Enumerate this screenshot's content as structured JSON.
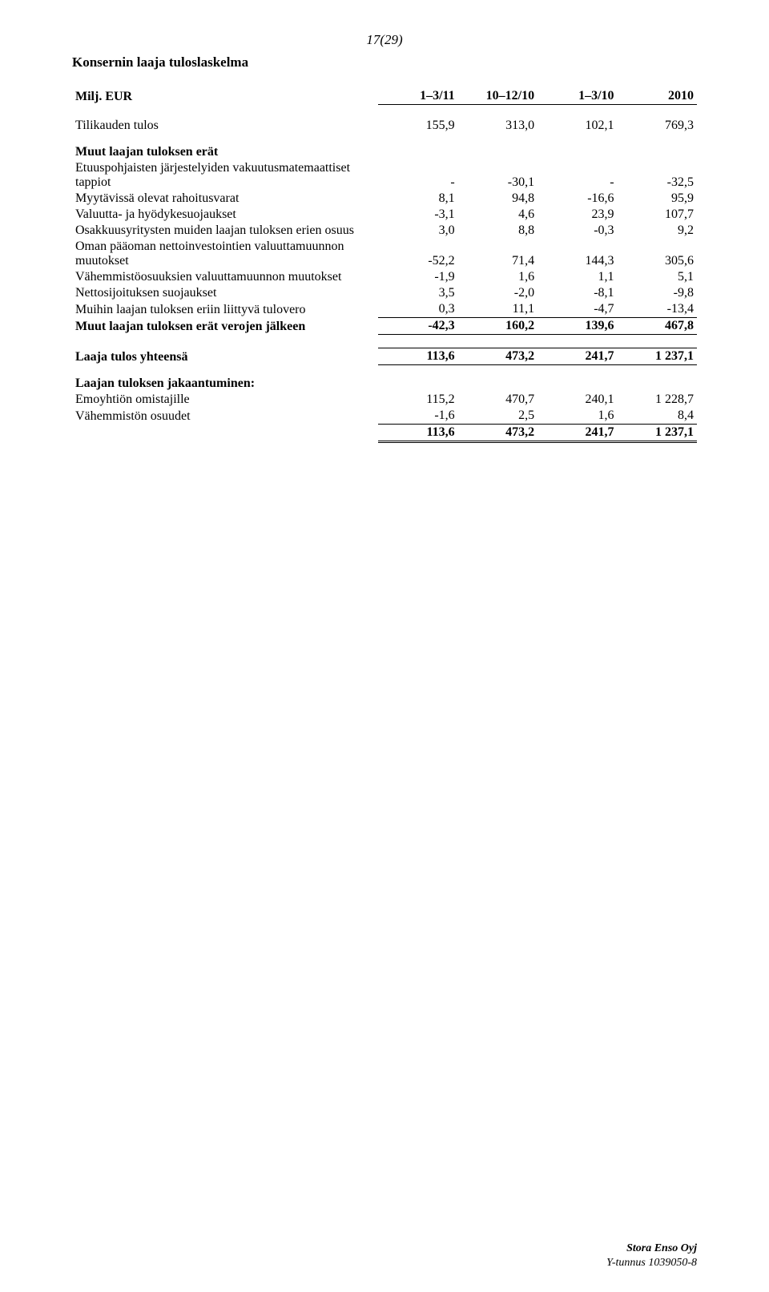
{
  "page_number": "17(29)",
  "title": "Konsernin laaja tuloslaskelma",
  "header": {
    "row_label": "Milj. EUR",
    "cols": [
      "1–3/11",
      "10–12/10",
      "1–3/10",
      "2010"
    ]
  },
  "tilikauden": {
    "label": "Tilikauden tulos",
    "v": [
      "155,9",
      "313,0",
      "102,1",
      "769,3"
    ]
  },
  "muut_section": "Muut laajan tuloksen erät",
  "rows": [
    {
      "label": "Etuuspohjaisten järjestelyiden vakuutusmatemaattiset tappiot",
      "v": [
        "-",
        "-30,1",
        "-",
        "-32,5"
      ]
    },
    {
      "label": "Myytävissä olevat rahoitusvarat",
      "v": [
        "8,1",
        "94,8",
        "-16,6",
        "95,9"
      ]
    },
    {
      "label": "Valuutta- ja hyödykesuojaukset",
      "v": [
        "-3,1",
        "4,6",
        "23,9",
        "107,7"
      ]
    },
    {
      "label": "Osakkuusyritysten muiden laajan tuloksen erien osuus",
      "v": [
        "3,0",
        "8,8",
        "-0,3",
        "9,2"
      ]
    },
    {
      "label": "Oman pääoman nettoinvestointien valuuttamuunnon muutokset",
      "v": [
        "-52,2",
        "71,4",
        "144,3",
        "305,6"
      ]
    },
    {
      "label": "Vähemmistöosuuksien valuuttamuunnon muutokset",
      "v": [
        "-1,9",
        "1,6",
        "1,1",
        "5,1"
      ]
    },
    {
      "label": "Nettosijoituksen suojaukset",
      "v": [
        "3,5",
        "-2,0",
        "-8,1",
        "-9,8"
      ]
    },
    {
      "label": "Muihin laajan tuloksen eriin liittyvä tulovero",
      "v": [
        "0,3",
        "11,1",
        "-4,7",
        "-13,4"
      ]
    }
  ],
  "muut_total": {
    "label": "Muut laajan tuloksen erät verojen jälkeen",
    "v": [
      "-42,3",
      "160,2",
      "139,6",
      "467,8"
    ]
  },
  "laaja_total": {
    "label": "Laaja tulos yhteensä",
    "v": [
      "113,6",
      "473,2",
      "241,7",
      "1 237,1"
    ]
  },
  "jakaantuminen_section": "Laajan tuloksen jakaantuminen:",
  "jakaantuminen": [
    {
      "label": "Emoyhtiön omistajille",
      "v": [
        "115,2",
        "470,7",
        "240,1",
        "1 228,7"
      ]
    },
    {
      "label": "Vähemmistön osuudet",
      "v": [
        "-1,6",
        "2,5",
        "1,6",
        "8,4"
      ]
    }
  ],
  "jak_total": {
    "label": "",
    "v": [
      "113,6",
      "473,2",
      "241,7",
      "1 237,1"
    ]
  },
  "footer": {
    "company": "Stora Enso Oyj",
    "reg": "Y-tunnus 1039050-8"
  }
}
